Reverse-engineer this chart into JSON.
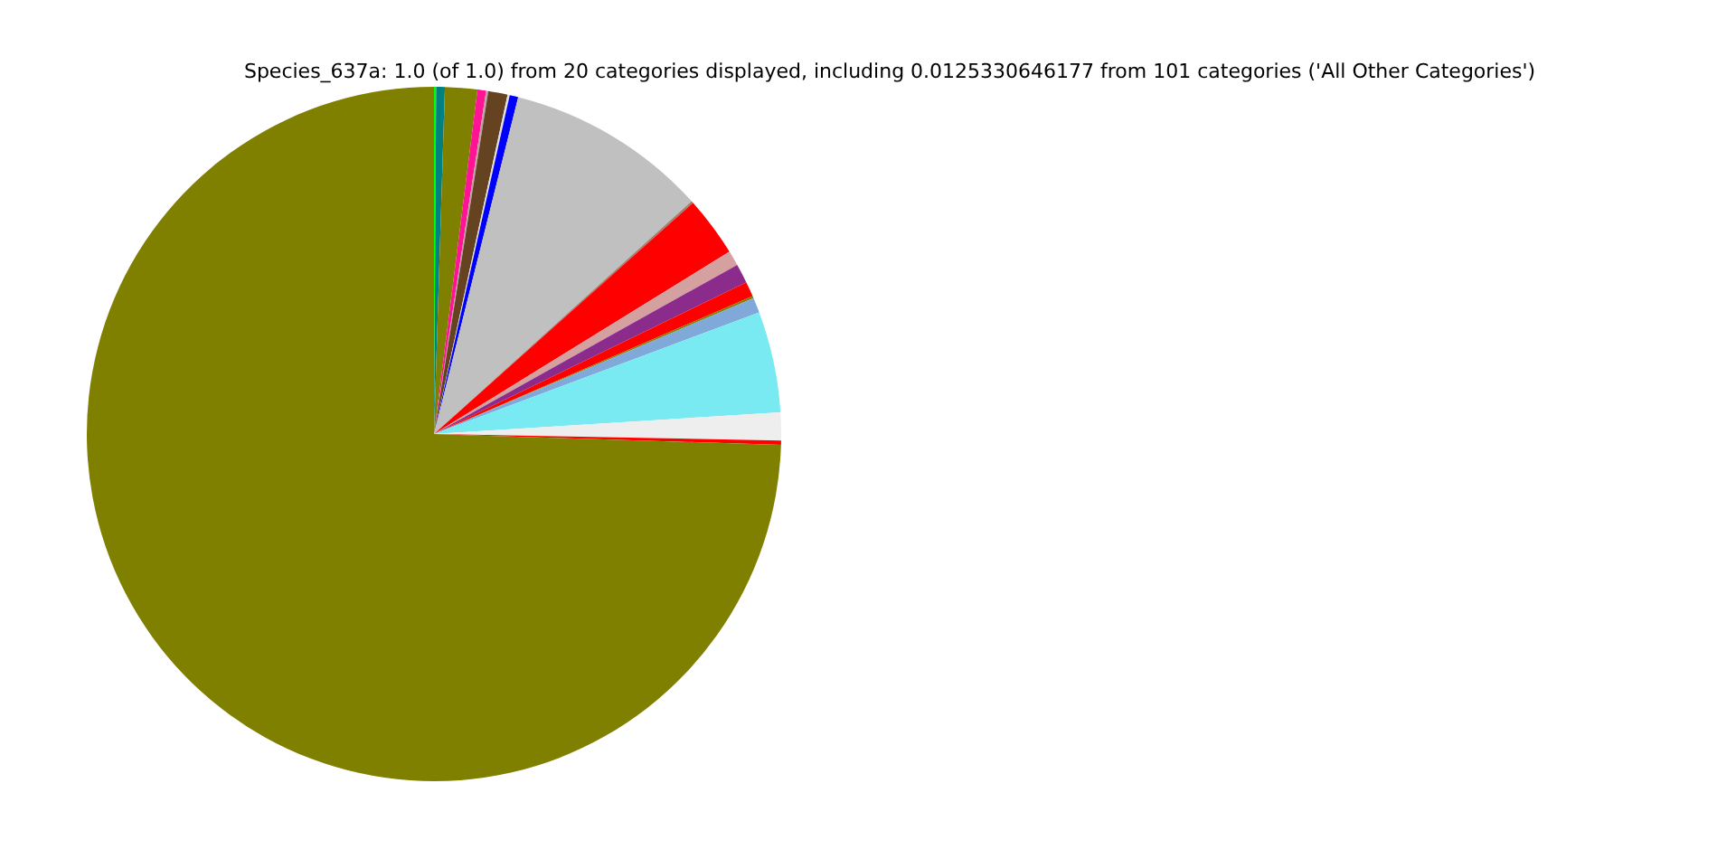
{
  "chart_data": {
    "type": "pie",
    "title": "Species_637a: 1.0 (of 1.0) from 20 categories displayed, including 0.0125330646177 from 101 categories ('All Other Categories')",
    "categories": [
      null,
      null,
      null,
      null,
      null,
      null,
      null,
      null,
      null,
      null,
      null,
      null,
      null,
      null,
      null,
      null,
      null,
      null,
      null,
      null
    ],
    "values": [
      0.1,
      0.4,
      1.5,
      0.4,
      0.1,
      0.9,
      0.1,
      0.4,
      9.4,
      0.1,
      2.8,
      0.7,
      0.9,
      0.7,
      0.1,
      0.7,
      4.7,
      1.3,
      0.2,
      74.5
    ],
    "colors": [
      "#00ff00",
      "#008080",
      "#808000",
      "#ff1493",
      "#c0a0a0",
      "#654321",
      "#e0e0e0",
      "#0000ff",
      "#c0c0c0",
      "#a08070",
      "#ff0000",
      "#d4a0a0",
      "#8b2b8b",
      "#ff0000",
      "#808000",
      "#80a8d8",
      "#7aeaf2",
      "#eeeeee",
      "#ff0000",
      "#808000"
    ],
    "legend": false
  }
}
